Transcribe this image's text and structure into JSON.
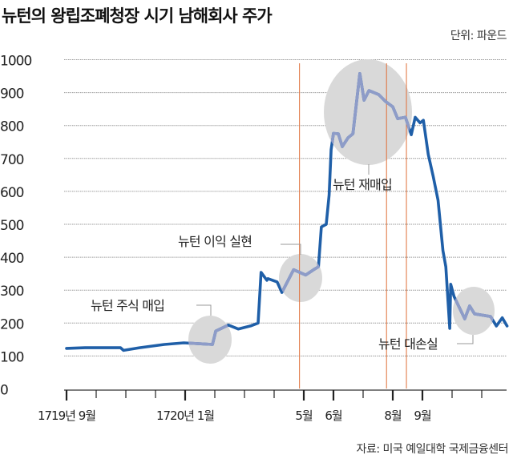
{
  "chart_data": {
    "type": "line",
    "title": "뉴턴의 왕립조폐청장 시기 남해회사 주가",
    "unit": "단위: 파운드",
    "source": "자료: 미국 예일대학 국제금융센터",
    "ylim": [
      0,
      1000
    ],
    "yticks": [
      0,
      100,
      200,
      300,
      400,
      500,
      600,
      700,
      800,
      900,
      1000
    ],
    "grid": true,
    "xticks": [
      {
        "date": "1719-09-01",
        "label": "1719년 9월"
      },
      {
        "date": "1719-10-01",
        "label": ""
      },
      {
        "date": "1719-11-01",
        "label": ""
      },
      {
        "date": "1719-12-01",
        "label": ""
      },
      {
        "date": "1720-01-01",
        "label": "1720년 1월"
      },
      {
        "date": "1720-02-01",
        "label": ""
      },
      {
        "date": "1720-03-01",
        "label": ""
      },
      {
        "date": "1720-04-01",
        "label": ""
      },
      {
        "date": "1720-05-01",
        "label": "5월"
      },
      {
        "date": "1720-06-01",
        "label": "6월"
      },
      {
        "date": "1720-07-01",
        "label": ""
      },
      {
        "date": "1720-08-01",
        "label": "8월"
      },
      {
        "date": "1720-09-01",
        "label": "9월"
      },
      {
        "date": "1720-10-01",
        "label": ""
      },
      {
        "date": "1720-11-01",
        "label": ""
      }
    ],
    "line_color": "#1f5fa8",
    "highlight_color": "#8e9cc8",
    "event_line_color": "#e0703a",
    "event_lines": [
      "1720-04-27",
      "1720-07-25",
      "1720-08-15"
    ],
    "series": [
      {
        "points": [
          [
            "1719-09-01",
            123
          ],
          [
            "1719-09-20",
            125
          ],
          [
            "1719-10-26",
            125
          ],
          [
            "1719-10-29",
            117
          ],
          [
            "1719-11-15",
            125
          ],
          [
            "1719-12-10",
            135
          ],
          [
            "1719-12-30",
            140
          ],
          [
            "1720-01-29",
            135
          ],
          [
            "1720-02-02",
            176
          ],
          [
            "1720-02-15",
            194
          ],
          [
            "1720-02-25",
            182
          ],
          [
            "1720-03-08",
            192
          ],
          [
            "1720-03-15",
            200
          ],
          [
            "1720-03-18",
            354
          ],
          [
            "1720-03-24",
            330
          ],
          [
            "1720-03-25",
            335
          ],
          [
            "1720-04-04",
            325
          ],
          [
            "1720-04-09",
            293
          ],
          [
            "1720-04-21",
            362
          ],
          [
            "1720-05-03",
            346
          ],
          [
            "1720-05-11",
            362
          ],
          [
            "1720-05-16",
            371
          ],
          [
            "1720-05-19",
            492
          ],
          [
            "1720-05-24",
            500
          ],
          [
            "1720-05-27",
            589
          ],
          [
            "1720-05-29",
            727
          ],
          [
            "1720-06-01",
            776
          ],
          [
            "1720-06-06",
            775
          ],
          [
            "1720-06-10",
            736
          ],
          [
            "1720-06-16",
            763
          ],
          [
            "1720-06-21",
            775
          ],
          [
            "1720-06-28",
            958
          ],
          [
            "1720-07-02",
            877
          ],
          [
            "1720-07-07",
            906
          ],
          [
            "1720-07-17",
            894
          ],
          [
            "1720-07-24",
            873
          ],
          [
            "1720-08-01",
            857
          ],
          [
            "1720-08-06",
            821
          ],
          [
            "1720-08-14",
            825
          ],
          [
            "1720-08-20",
            772
          ],
          [
            "1720-08-24",
            825
          ],
          [
            "1720-08-29",
            808
          ],
          [
            "1720-09-02",
            816
          ],
          [
            "1720-09-07",
            712
          ],
          [
            "1720-09-12",
            646
          ],
          [
            "1720-09-17",
            573
          ],
          [
            "1720-09-22",
            420
          ],
          [
            "1720-09-25",
            371
          ],
          [
            "1720-09-29",
            184
          ],
          [
            "1720-09-30",
            318
          ],
          [
            "1720-10-03",
            281
          ],
          [
            "1720-10-14",
            213
          ],
          [
            "1720-10-19",
            252
          ],
          [
            "1720-10-24",
            228
          ],
          [
            "1720-11-10",
            220
          ],
          [
            "1720-11-16",
            191
          ],
          [
            "1720-11-22",
            216
          ],
          [
            "1720-11-27",
            191
          ]
        ]
      }
    ],
    "annotations": [
      {
        "label": "뉴턴 주식 매입",
        "date": "1720-01-25",
        "value": 150
      },
      {
        "label": "뉴턴 이익 실현",
        "date": "1720-04-25",
        "value": 340
      },
      {
        "label": "뉴턴 재매입",
        "date": "1720-07-10",
        "value": 840
      },
      {
        "label": "뉴턴 대손실",
        "date": "1720-10-25",
        "value": 240
      }
    ]
  }
}
